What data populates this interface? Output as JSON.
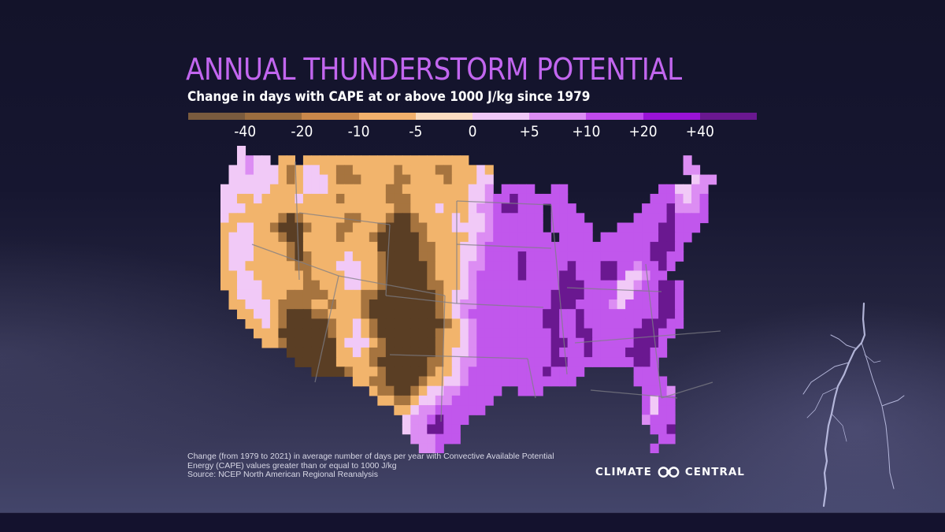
{
  "header": {
    "title": "ANNUAL THUNDERSTORM POTENTIAL",
    "subtitle": "Change in days with CAPE at or above 1000 J/kg since 1979"
  },
  "legend": {
    "segments": [
      {
        "color": "#7a5b3e"
      },
      {
        "color": "#9b6d3f"
      },
      {
        "color": "#c9874a"
      },
      {
        "color": "#f2b06c"
      },
      {
        "color": "#fbdcc0"
      },
      {
        "color": "#f0c8f7"
      },
      {
        "color": "#dc8df3"
      },
      {
        "color": "#c04aec"
      },
      {
        "color": "#9a13d6"
      },
      {
        "color": "#6a1890"
      }
    ],
    "labels": [
      "-40",
      "-20",
      "-10",
      "-5",
      "0",
      "+5",
      "+10",
      "+20",
      "+40"
    ]
  },
  "map_classes": {
    "D": "#5a3e24",
    "B": "#a6743f",
    "T": "#f2b46c",
    "L": "#f1c9f7",
    "M": "#dc8df3",
    "P": "#c157ec",
    "V": "#6a1890"
  },
  "map_grid": [
    "..L.........................................................",
    "..LMLL.TT.TTTTTTTTTTTTTTTTTTTT..........................M...",
    ".LLMLLLTBTLLTTBBTTTTTBTTTTBBTTTLT.......................MM..",
    ".LLLLLLTBTLLLTBBBTTTTBBTTTTBTTTLL........................LMM.",
    "LLLLLLTTTTLLLTTTTTTTBBTTTTTTTTLLM.PPPP..PP...........PPLLMM",
    "LLTTLTTTTLTTTTBTTTTTBBBTTTTTTTLLMPPVPPPPPP..........PPPMLMP.",
    "LLLTTTTTTTTTTTTTTTTTTBBTTTLTTTLMMPVVPPP.PPP........PPPVMMMP.",
    "LTTTTTTBDBTTTTTBBTTTBDDBTTTTLTLLMPPPPPP.PPPP......PPPPVPPPP.",
    "TTLLTTBDDDBTTTBBTTTBDDDBBTTTLLLLMPPPPPP.PPPPP...PPPPPVVPPP..",
    "TLLLTTTBDDTTTTBTTTBDDDDDBTTTTTLMMPPPPPPP.PPPP.PPPPPPPVVPP...",
    "TLLLTTTTBDTTTTTTTTTDDDDDBBTTTLLMPPPPPPPPPPPPPPPPPPPPVVVP....",
    "TLLLTTTTBDBTTTTLTTTBDDDDBBTTTLLMPPPPVPPPPPPPPPPPPPPPVVPP....",
    "TLLTTTTTTBBTTTLLLTTBDDDDDBTTTLMMPPPPVPPPPPVPPPVVPPMPPVP.....",
    "TTLLTTTTTTBTTTTLLTTBDDDDDBTTTLMPPPPPVPPPPVVPPPVVPLLMPP......",
    "TTLLLTTTTTBBTTTLLTTBDDDDDBBTTLMPPPPPPPPPPVVVPPPPLLMPPVVP....",
    ".TLLLTTTBBBBBTTTTBBDDDDDDDBTLLMPPPPPPPPPVVVVPPPPLLPPPVVP....",
    ".TTLLLTBBBBTTBTTTBDDDDDDDDBTLMMPPPPPPPPPVVVPPPPMLPPPPVVP....",
    "..TTLLTBDDDBBTTTTBDDDDDDDDBTLMPPPPPPPPPVVPPVPPPPPPPPPVVP....",
    "...TTLTBDDDDDBTTLTBDDDDDDDDBTLMPPPPPPPPVVPPVPPPPPPPVVVPP....",
    "....TTTDDDDDDBTTLTBDDDDDDDBTTLMPPPPPPPPPVPPVVPPPPPVVVPP.....",
    ".....TTBDDDDDDTLLLTBDDDDDDBTTLMPPPPPPPPPVVPPVPPPPPVVVP......",
    "........DDDDDDTTLTBBDDDDDDBTLLMPPPPPPPPPVPPPVPPPPVVVPP......",
    ".........DDDDDTTTTBDDDDDDBBTLMMPPPPPPPPPVVPPPPPPPPVVP.......",
    "...........DDDDBTTTBDDDDDBTTLMPPPPPPPPPVPPPP......PPP.......",
    "................TTBBDDDDBTTLLMPPPPPPPPPPPPP.......PPPP......",
    "..................TBBDDBTLLMMPPPPP..PPP............PPPM.....",
    "...................TTBBTLLMMPPPPP..................PLPP.....",
    ".....................TTLMMPPPPPP...................PLPP.....",
    "......................LMMPVPPP.....................MPPP.....",
    "......................LMMVVPP.......................PPV.....",
    ".......................MMMPPP........................PP.....",
    "........................MMP.........................P......"
  ],
  "footnote": {
    "line1": "Change (from 1979 to 2021) in average number of days per year with Convective Available Potential",
    "line2": "Energy (CAPE) values greater than or equal to 1000 J/kg",
    "line3": "Source: NCEP North American Regional Reanalysis"
  },
  "brand": {
    "left": "CLIMATE",
    "right": "CENTRAL"
  }
}
